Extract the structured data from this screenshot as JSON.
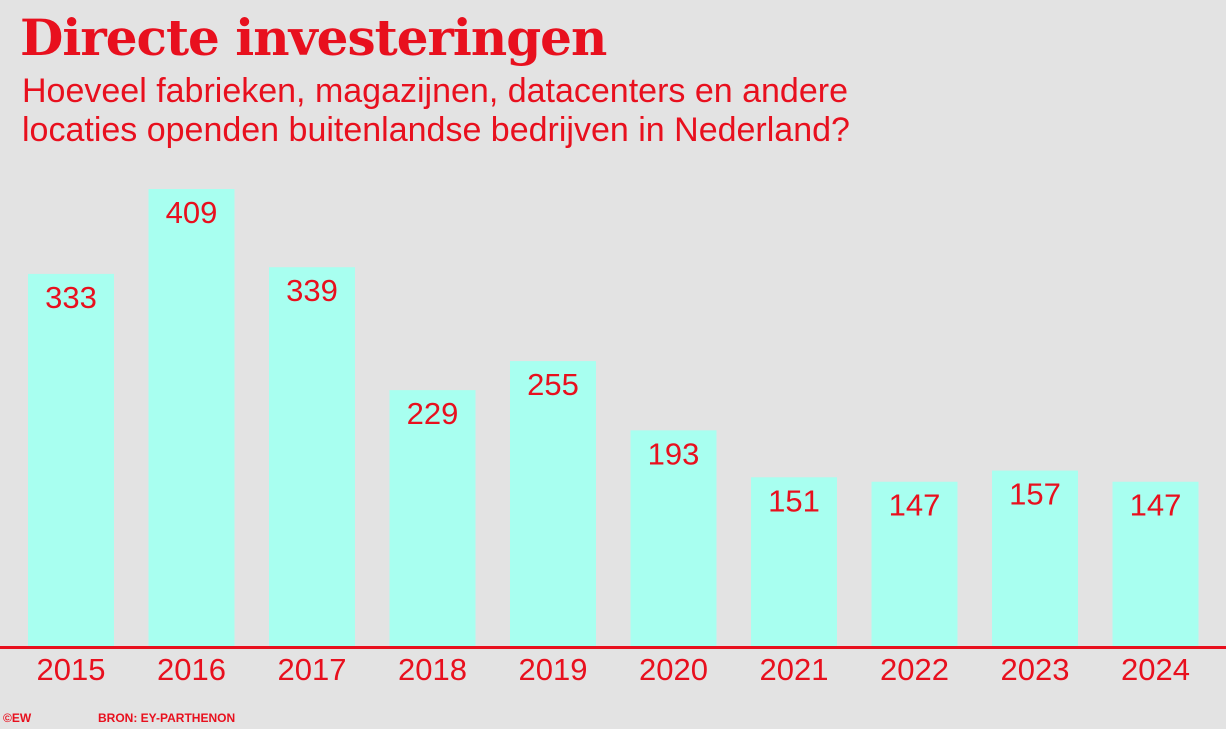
{
  "title": "Directe investeringen",
  "subtitle": "Hoeveel fabrieken, magazijnen, datacenters en andere locaties openden buitenlandse bedrijven in Nederland?",
  "footer": {
    "copyright": "©EW",
    "source": "BRON: EY-PARTHENON"
  },
  "colors": {
    "accent": "#e8101e",
    "bar": "#a8fff0",
    "background": "#e3e3e3"
  },
  "chart_data": {
    "type": "bar",
    "title": "Directe investeringen",
    "subtitle": "Hoeveel fabrieken, magazijnen, datacenters en andere locaties openden buitenlandse bedrijven in Nederland?",
    "categories": [
      "2015",
      "2016",
      "2017",
      "2018",
      "2019",
      "2020",
      "2021",
      "2022",
      "2023",
      "2024"
    ],
    "values": [
      333,
      409,
      339,
      229,
      255,
      193,
      151,
      147,
      157,
      147
    ],
    "xlabel": "",
    "ylabel": "",
    "ylim": [
      0,
      409
    ],
    "grid": false,
    "legend": "none",
    "data_labels": true
  }
}
